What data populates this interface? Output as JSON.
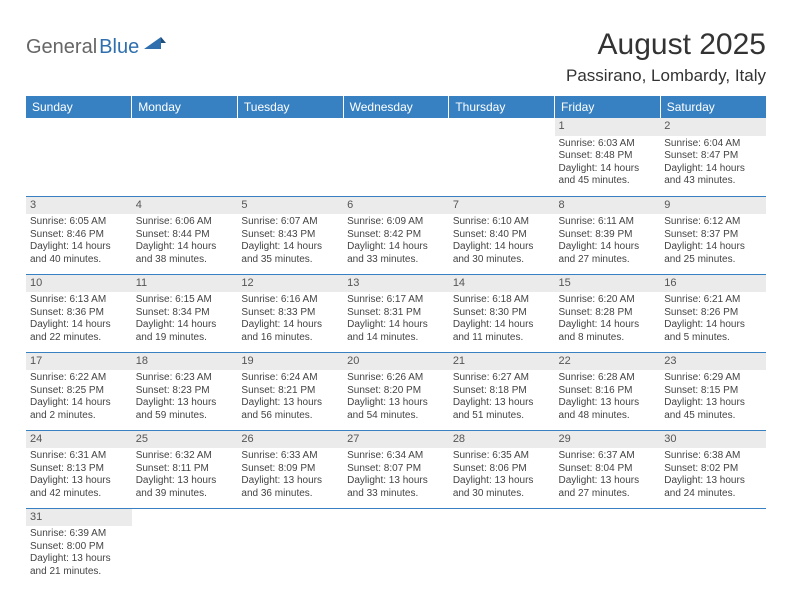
{
  "logo": {
    "general": "General",
    "blue": "Blue"
  },
  "title": "August 2025",
  "location": "Passirano, Lombardy, Italy",
  "colors": {
    "header_bg": "#3781c2",
    "header_text": "#ffffff",
    "daynum_bg": "#ebebeb",
    "cell_border": "#3781c2",
    "body_text": "#444444"
  },
  "typography": {
    "title_fontsize": 30,
    "location_fontsize": 17,
    "header_fontsize": 12,
    "cell_fontsize": 10,
    "daynum_fontsize": 11
  },
  "day_headers": [
    "Sunday",
    "Monday",
    "Tuesday",
    "Wednesday",
    "Thursday",
    "Friday",
    "Saturday"
  ],
  "weeks": [
    [
      null,
      null,
      null,
      null,
      null,
      {
        "n": "1",
        "sr": "Sunrise: 6:03 AM",
        "ss": "Sunset: 8:48 PM",
        "dl": "Daylight: 14 hours and 45 minutes."
      },
      {
        "n": "2",
        "sr": "Sunrise: 6:04 AM",
        "ss": "Sunset: 8:47 PM",
        "dl": "Daylight: 14 hours and 43 minutes."
      }
    ],
    [
      {
        "n": "3",
        "sr": "Sunrise: 6:05 AM",
        "ss": "Sunset: 8:46 PM",
        "dl": "Daylight: 14 hours and 40 minutes."
      },
      {
        "n": "4",
        "sr": "Sunrise: 6:06 AM",
        "ss": "Sunset: 8:44 PM",
        "dl": "Daylight: 14 hours and 38 minutes."
      },
      {
        "n": "5",
        "sr": "Sunrise: 6:07 AM",
        "ss": "Sunset: 8:43 PM",
        "dl": "Daylight: 14 hours and 35 minutes."
      },
      {
        "n": "6",
        "sr": "Sunrise: 6:09 AM",
        "ss": "Sunset: 8:42 PM",
        "dl": "Daylight: 14 hours and 33 minutes."
      },
      {
        "n": "7",
        "sr": "Sunrise: 6:10 AM",
        "ss": "Sunset: 8:40 PM",
        "dl": "Daylight: 14 hours and 30 minutes."
      },
      {
        "n": "8",
        "sr": "Sunrise: 6:11 AM",
        "ss": "Sunset: 8:39 PM",
        "dl": "Daylight: 14 hours and 27 minutes."
      },
      {
        "n": "9",
        "sr": "Sunrise: 6:12 AM",
        "ss": "Sunset: 8:37 PM",
        "dl": "Daylight: 14 hours and 25 minutes."
      }
    ],
    [
      {
        "n": "10",
        "sr": "Sunrise: 6:13 AM",
        "ss": "Sunset: 8:36 PM",
        "dl": "Daylight: 14 hours and 22 minutes."
      },
      {
        "n": "11",
        "sr": "Sunrise: 6:15 AM",
        "ss": "Sunset: 8:34 PM",
        "dl": "Daylight: 14 hours and 19 minutes."
      },
      {
        "n": "12",
        "sr": "Sunrise: 6:16 AM",
        "ss": "Sunset: 8:33 PM",
        "dl": "Daylight: 14 hours and 16 minutes."
      },
      {
        "n": "13",
        "sr": "Sunrise: 6:17 AM",
        "ss": "Sunset: 8:31 PM",
        "dl": "Daylight: 14 hours and 14 minutes."
      },
      {
        "n": "14",
        "sr": "Sunrise: 6:18 AM",
        "ss": "Sunset: 8:30 PM",
        "dl": "Daylight: 14 hours and 11 minutes."
      },
      {
        "n": "15",
        "sr": "Sunrise: 6:20 AM",
        "ss": "Sunset: 8:28 PM",
        "dl": "Daylight: 14 hours and 8 minutes."
      },
      {
        "n": "16",
        "sr": "Sunrise: 6:21 AM",
        "ss": "Sunset: 8:26 PM",
        "dl": "Daylight: 14 hours and 5 minutes."
      }
    ],
    [
      {
        "n": "17",
        "sr": "Sunrise: 6:22 AM",
        "ss": "Sunset: 8:25 PM",
        "dl": "Daylight: 14 hours and 2 minutes."
      },
      {
        "n": "18",
        "sr": "Sunrise: 6:23 AM",
        "ss": "Sunset: 8:23 PM",
        "dl": "Daylight: 13 hours and 59 minutes."
      },
      {
        "n": "19",
        "sr": "Sunrise: 6:24 AM",
        "ss": "Sunset: 8:21 PM",
        "dl": "Daylight: 13 hours and 56 minutes."
      },
      {
        "n": "20",
        "sr": "Sunrise: 6:26 AM",
        "ss": "Sunset: 8:20 PM",
        "dl": "Daylight: 13 hours and 54 minutes."
      },
      {
        "n": "21",
        "sr": "Sunrise: 6:27 AM",
        "ss": "Sunset: 8:18 PM",
        "dl": "Daylight: 13 hours and 51 minutes."
      },
      {
        "n": "22",
        "sr": "Sunrise: 6:28 AM",
        "ss": "Sunset: 8:16 PM",
        "dl": "Daylight: 13 hours and 48 minutes."
      },
      {
        "n": "23",
        "sr": "Sunrise: 6:29 AM",
        "ss": "Sunset: 8:15 PM",
        "dl": "Daylight: 13 hours and 45 minutes."
      }
    ],
    [
      {
        "n": "24",
        "sr": "Sunrise: 6:31 AM",
        "ss": "Sunset: 8:13 PM",
        "dl": "Daylight: 13 hours and 42 minutes."
      },
      {
        "n": "25",
        "sr": "Sunrise: 6:32 AM",
        "ss": "Sunset: 8:11 PM",
        "dl": "Daylight: 13 hours and 39 minutes."
      },
      {
        "n": "26",
        "sr": "Sunrise: 6:33 AM",
        "ss": "Sunset: 8:09 PM",
        "dl": "Daylight: 13 hours and 36 minutes."
      },
      {
        "n": "27",
        "sr": "Sunrise: 6:34 AM",
        "ss": "Sunset: 8:07 PM",
        "dl": "Daylight: 13 hours and 33 minutes."
      },
      {
        "n": "28",
        "sr": "Sunrise: 6:35 AM",
        "ss": "Sunset: 8:06 PM",
        "dl": "Daylight: 13 hours and 30 minutes."
      },
      {
        "n": "29",
        "sr": "Sunrise: 6:37 AM",
        "ss": "Sunset: 8:04 PM",
        "dl": "Daylight: 13 hours and 27 minutes."
      },
      {
        "n": "30",
        "sr": "Sunrise: 6:38 AM",
        "ss": "Sunset: 8:02 PM",
        "dl": "Daylight: 13 hours and 24 minutes."
      }
    ],
    [
      {
        "n": "31",
        "sr": "Sunrise: 6:39 AM",
        "ss": "Sunset: 8:00 PM",
        "dl": "Daylight: 13 hours and 21 minutes."
      },
      null,
      null,
      null,
      null,
      null,
      null
    ]
  ]
}
